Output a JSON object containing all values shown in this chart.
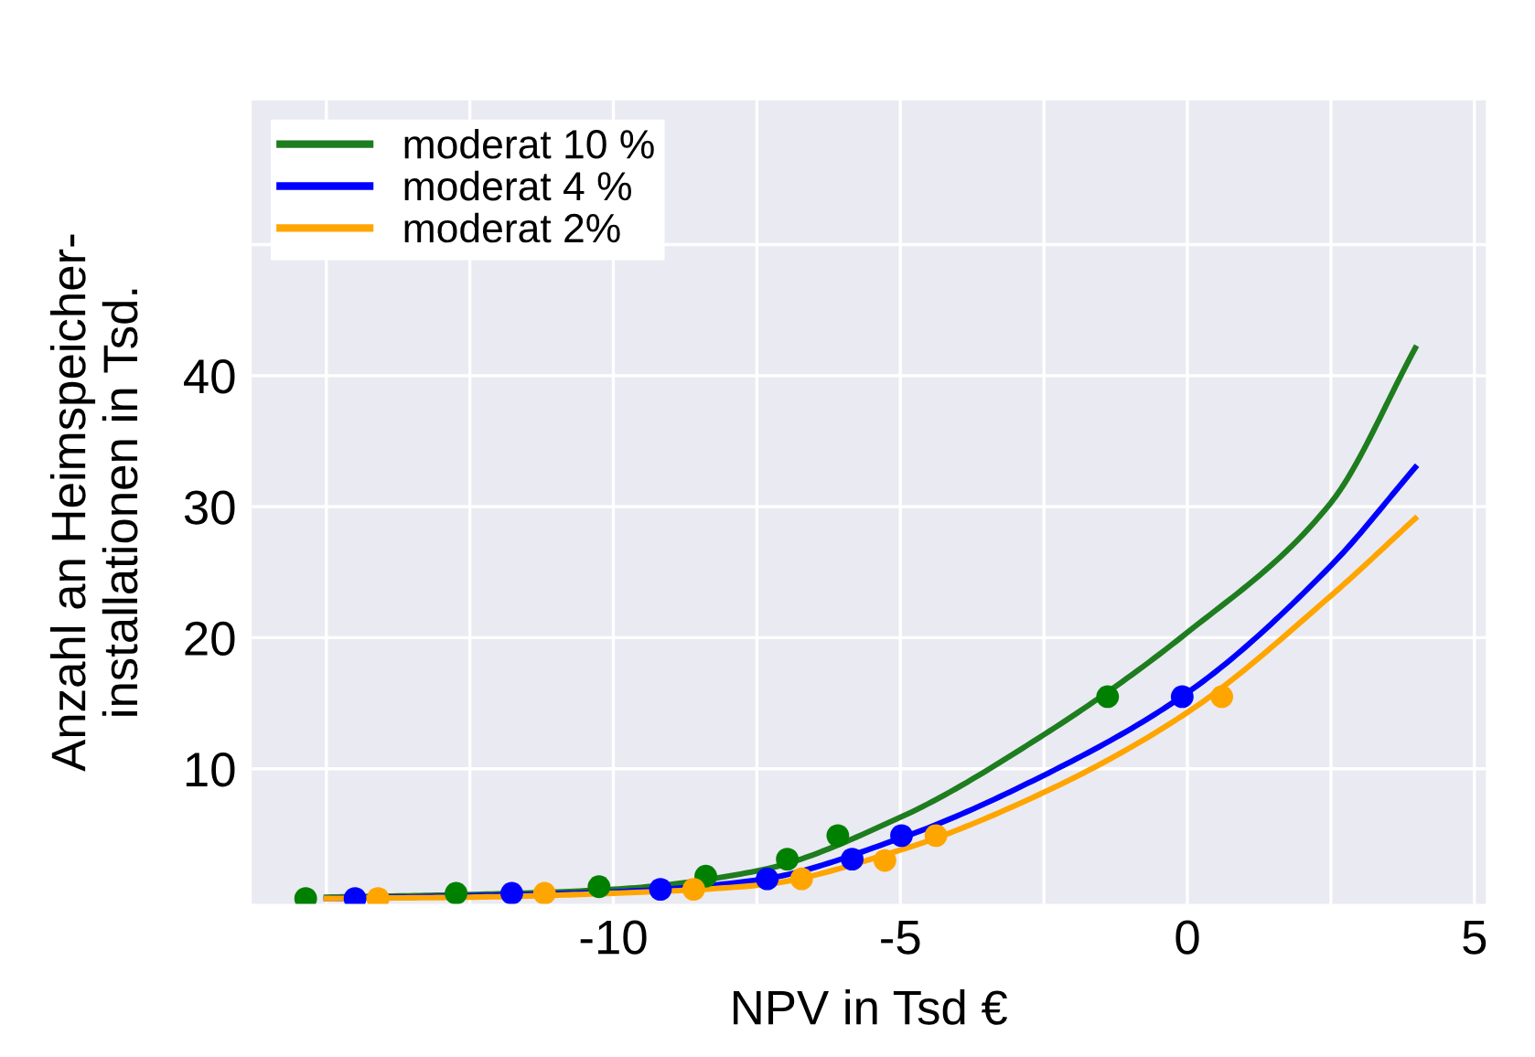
{
  "chart_data": {
    "type": "line",
    "xlabel": "NPV in Tsd €",
    "ylabel": "Anzahl an Heimspeicher-\ninstallationen in Tsd.",
    "xlim": [
      -16.3,
      5.2
    ],
    "ylim": [
      -0.3,
      61
    ],
    "xticks": [
      {
        "value": -15,
        "label": null
      },
      {
        "value": -12.5,
        "label": null
      },
      -10,
      {
        "value": -7.5,
        "label": null
      },
      -5,
      {
        "value": -2.5,
        "label": null
      },
      0,
      {
        "value": 2.5,
        "label": null
      },
      5
    ],
    "yticks": [
      10,
      20,
      30,
      40,
      {
        "value": 50,
        "label": null
      }
    ],
    "grid": true,
    "legend": "top left",
    "series": [
      {
        "name": "moderat 10 %",
        "color": "#1e7d1e",
        "x": [
          -15,
          -12.5,
          -10,
          -7.5,
          -5,
          -2.5,
          0,
          2.5,
          3.97
        ],
        "values": [
          0.2,
          0.4,
          0.8,
          2.2,
          6.3,
          12.6,
          20.4,
          30.3,
          42.1
        ]
      },
      {
        "name": "moderat 4 %",
        "color": "#0000ff",
        "x": [
          -15,
          -12.5,
          -10,
          -7.5,
          -5,
          -2.5,
          0,
          2.5,
          3.97
        ],
        "values": [
          0.1,
          0.3,
          0.6,
          1.5,
          4.7,
          9.5,
          15.8,
          25.5,
          33.0
        ]
      },
      {
        "name": "moderat 2%",
        "color": "#ffa500",
        "x": [
          -15,
          -12.5,
          -10,
          -7.5,
          -5,
          -2.5,
          0,
          2.5,
          3.97
        ],
        "values": [
          0.1,
          0.2,
          0.5,
          1.1,
          3.8,
          8.2,
          14.3,
          23.2,
          29.1
        ]
      },
      {
        "type": "scatter",
        "color": "#008000",
        "marker": "circle",
        "x": [
          -15.36,
          -12.74,
          -10.25,
          -8.39,
          -6.97,
          -6.09,
          -1.39
        ],
        "values": [
          0.1,
          0.5,
          1.0,
          1.8,
          3.1,
          4.9,
          15.5
        ]
      },
      {
        "type": "scatter",
        "color": "#0000ff",
        "marker": "circle",
        "x": [
          -14.5,
          -11.77,
          -9.18,
          -7.32,
          -5.84,
          -4.98,
          -0.09
        ],
        "values": [
          0.1,
          0.5,
          0.8,
          1.6,
          3.1,
          4.9,
          15.5
        ]
      },
      {
        "type": "scatter",
        "color": "#ffa500",
        "marker": "circle",
        "x": [
          -14.1,
          -11.2,
          -8.6,
          -6.72,
          -5.27,
          -4.38,
          0.6
        ],
        "values": [
          0.1,
          0.5,
          0.8,
          1.6,
          3.0,
          4.9,
          15.5
        ]
      }
    ]
  }
}
